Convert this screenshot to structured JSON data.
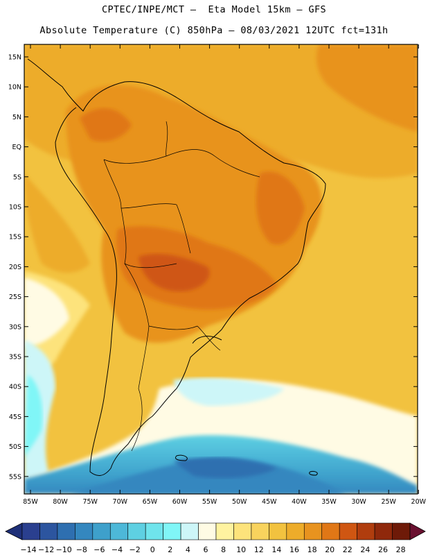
{
  "header": {
    "line1": "CPTEC/INPE/MCT –  Eta Model 15km – GFS",
    "line2": "Absolute Temperature (C) 850hPa – 08/03/2021 12UTC fct=131h"
  },
  "map": {
    "lat_labels": [
      "15N",
      "10N",
      "5N",
      "EQ",
      "5S",
      "10S",
      "15S",
      "20S",
      "25S",
      "30S",
      "35S",
      "40S",
      "45S",
      "50S",
      "55S"
    ],
    "lon_labels": [
      "85W",
      "80W",
      "75W",
      "70W",
      "65W",
      "60W",
      "55W",
      "50W",
      "45W",
      "40W",
      "35W",
      "30W",
      "25W",
      "20W"
    ]
  },
  "colorbar": {
    "labels": [
      "-14",
      "-12",
      "-10",
      "-8",
      "-6",
      "-4",
      "-2",
      "0",
      "2",
      "4",
      "6",
      "8",
      "10",
      "12",
      "14",
      "16",
      "18",
      "20",
      "22",
      "24",
      "26",
      "28"
    ],
    "colors": [
      "#2a3f8f",
      "#2c559f",
      "#2e6fb0",
      "#3487bf",
      "#3ea0cb",
      "#4db8d8",
      "#5ed0e2",
      "#6fe4ec",
      "#80f6f7",
      "#cdf6f8",
      "#fffbe4",
      "#fff3a0",
      "#fde37b",
      "#f8d35d",
      "#f2c23f",
      "#edac2a",
      "#e8931f",
      "#e07716",
      "#cf5612",
      "#b03d0e",
      "#8f280b",
      "#6e1a08"
    ],
    "under_color": "#1e2f78",
    "over_color": "#6a1030"
  }
}
